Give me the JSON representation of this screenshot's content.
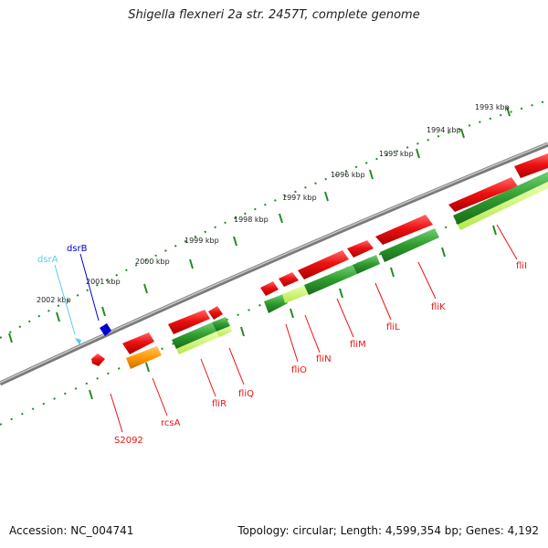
{
  "title": "Shigella flexneri 2a str. 2457T, complete genome",
  "accession": "Accession: NC_004741",
  "topology": "Topology: circular; Length: 4,599,354 bp; Genes: 4,192",
  "scale_labels": [
    "1993 kbp",
    "1994 kbp",
    "1995 kbp",
    "1996 kbp",
    "1997 kbp",
    "1998 kbp",
    "1999 kbp",
    "2000 kbp",
    "2001 kbp",
    "2002 kbp"
  ],
  "genes": {
    "dsrA": "dsrA",
    "dsrB": "dsrB",
    "s2092": "S2092",
    "rcsA": "rcsA",
    "fliR": "fliR",
    "fliQ": "fliQ",
    "fliO": "fliO",
    "fliN": "fliN",
    "fliM": "fliM",
    "fliL": "fliL",
    "fliK": "fliK",
    "fliI": "fliI"
  },
  "colors": {
    "backbone": "#8a8a8a",
    "ticks": "#228b22",
    "cds": "#ee1111",
    "rna": "#55ccee",
    "blue": "#0000cc",
    "orange": "#ff9900",
    "green": "#2e9b2e",
    "lightgreen": "#c6f25a"
  }
}
